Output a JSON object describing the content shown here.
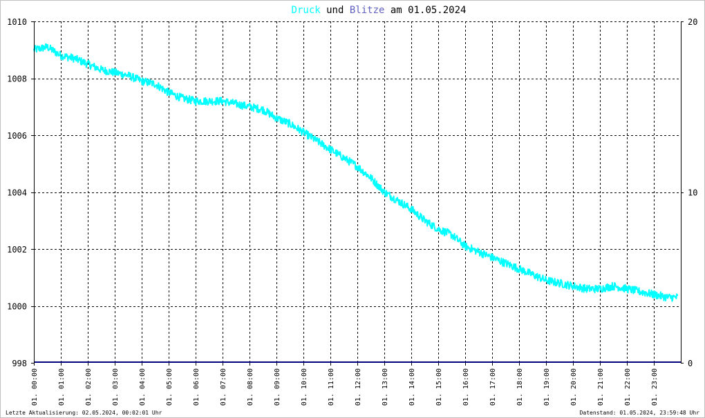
{
  "chart_data": {
    "type": "line",
    "title": {
      "part1": "Druck",
      "part2": " und ",
      "part3": "Blitze",
      "part4": " am 01.05.2024"
    },
    "colors": {
      "druck": "#00ffff",
      "blitze": "#6060c0",
      "grid": "#000000",
      "text": "#000000",
      "background": "#ffffff",
      "blitze_line": "#000080"
    },
    "y_left": {
      "min": 998,
      "max": 1010,
      "ticks": [
        "998",
        "1000",
        "1002",
        "1004",
        "1006",
        "1008",
        "1010"
      ]
    },
    "y_right": {
      "min": 0,
      "max": 20,
      "ticks": [
        "0",
        "10",
        "20"
      ]
    },
    "x_labels": [
      "01. 00:00",
      "01. 01:00",
      "01. 02:00",
      "01. 03:00",
      "01. 04:00",
      "01. 05:00",
      "01. 06:00",
      "01. 07:00",
      "01. 08:00",
      "01. 09:00",
      "01. 10:00",
      "01. 11:00",
      "01. 12:00",
      "01. 13:00",
      "01. 14:00",
      "01. 15:00",
      "01. 16:00",
      "01. 17:00",
      "01. 18:00",
      "01. 19:00",
      "01. 20:00",
      "01. 21:00",
      "01. 22:00",
      "01. 23:00"
    ],
    "grid": true,
    "series": [
      {
        "name": "Druck",
        "axis": "left",
        "x_hours": [
          0,
          0.5,
          1,
          1.5,
          2,
          2.5,
          3,
          3.5,
          4,
          4.5,
          5,
          5.5,
          6,
          6.5,
          7,
          7.5,
          8,
          8.5,
          9,
          9.5,
          10,
          10.5,
          11,
          11.5,
          12,
          12.5,
          13,
          13.5,
          14,
          14.5,
          15,
          15.5,
          16,
          16.5,
          17,
          17.5,
          18,
          18.5,
          19,
          19.5,
          20,
          20.5,
          21,
          21.5,
          22,
          22.5,
          23,
          23.5,
          23.9
        ],
        "values": [
          1009.0,
          1009.1,
          1008.8,
          1008.7,
          1008.5,
          1008.3,
          1008.2,
          1008.1,
          1007.9,
          1007.8,
          1007.5,
          1007.3,
          1007.2,
          1007.2,
          1007.2,
          1007.1,
          1007.0,
          1006.9,
          1006.6,
          1006.4,
          1006.1,
          1005.8,
          1005.5,
          1005.2,
          1004.9,
          1004.5,
          1004.0,
          1003.7,
          1003.4,
          1003.0,
          1002.7,
          1002.5,
          1002.1,
          1001.9,
          1001.7,
          1001.5,
          1001.3,
          1001.1,
          1000.9,
          1000.8,
          1000.7,
          1000.6,
          1000.6,
          1000.7,
          1000.6,
          1000.5,
          1000.4,
          1000.3,
          1000.3
        ]
      },
      {
        "name": "Blitze",
        "axis": "right",
        "x_hours": [
          0,
          24
        ],
        "values": [
          0,
          0
        ]
      }
    ]
  },
  "footer": {
    "left": "Letzte Aktualisierung: 02.05.2024, 00:02:01 Uhr",
    "right": "Datenstand: 01.05.2024, 23:59:48 Uhr"
  }
}
